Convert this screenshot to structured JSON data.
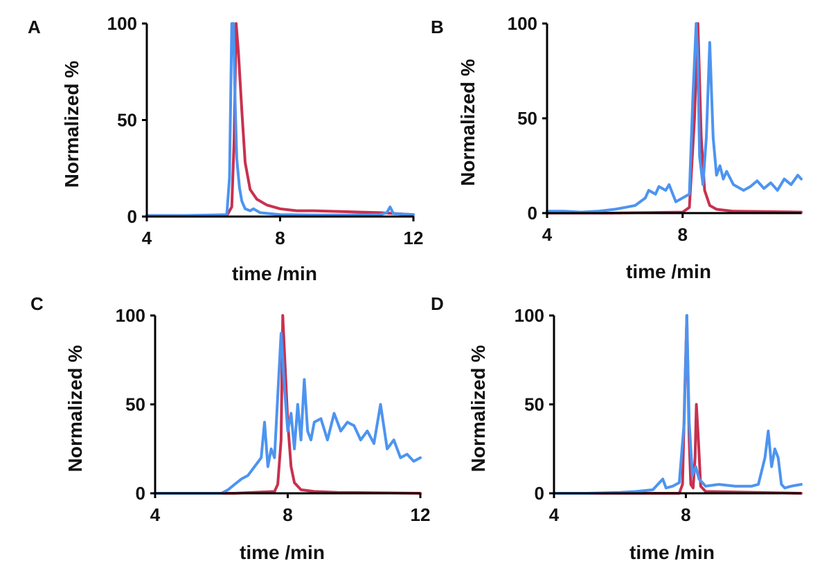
{
  "figure": {
    "colors": {
      "red": "#c8314f",
      "blue": "#4d94f0",
      "black": "#000000"
    }
  },
  "chart_data": [
    {
      "panel": "A",
      "type": "line",
      "xlabel": "time /min",
      "ylabel": "Normalized %",
      "xlim": [
        4,
        12
      ],
      "ylim": [
        0,
        100
      ],
      "xticks": [
        4,
        8,
        12
      ],
      "yticks": [
        0,
        50,
        100
      ],
      "series": [
        {
          "name": "black",
          "color": "#000000",
          "x": [
            4,
            12
          ],
          "y": [
            0,
            0
          ]
        },
        {
          "name": "red",
          "color": "#c8314f",
          "x": [
            4.0,
            6.4,
            6.55,
            6.62,
            6.68,
            6.75,
            6.85,
            6.95,
            7.1,
            7.3,
            7.6,
            8.0,
            8.5,
            9.0,
            10.0,
            11.0,
            12.0
          ],
          "y": [
            0.5,
            0.5,
            5,
            40,
            100,
            85,
            55,
            28,
            14,
            9,
            6,
            4,
            3,
            3,
            2.5,
            2,
            1
          ]
        },
        {
          "name": "blue",
          "color": "#4d94f0",
          "x": [
            4.0,
            5.0,
            6.0,
            6.4,
            6.48,
            6.55,
            6.6,
            6.65,
            6.7,
            6.78,
            6.85,
            6.95,
            7.1,
            7.2,
            7.4,
            8.0,
            9.0,
            10.0,
            11.0,
            11.2,
            11.3,
            11.4,
            12.0
          ],
          "y": [
            0.5,
            0.5,
            0.8,
            1,
            20,
            100,
            100,
            60,
            30,
            15,
            8,
            4,
            3,
            4,
            2,
            1,
            0.8,
            0.8,
            1,
            2,
            5,
            1.5,
            1
          ]
        }
      ]
    },
    {
      "panel": "B",
      "type": "line",
      "xlabel": "time /min",
      "ylabel": "Normalized %",
      "xlim": [
        4,
        11.5
      ],
      "ylim": [
        0,
        100
      ],
      "xticks": [
        4,
        8
      ],
      "yticks": [
        0,
        50,
        100
      ],
      "series": [
        {
          "name": "black",
          "color": "#000000",
          "x": [
            4,
            11.5
          ],
          "y": [
            0,
            0
          ]
        },
        {
          "name": "red",
          "color": "#c8314f",
          "x": [
            4.0,
            5.9,
            8.0,
            8.2,
            8.35,
            8.45,
            8.55,
            8.65,
            8.8,
            9.0,
            9.5,
            11.5
          ],
          "y": [
            0,
            0,
            0.5,
            3,
            50,
            100,
            40,
            12,
            4,
            2,
            1,
            0.5
          ]
        },
        {
          "name": "blue",
          "color": "#4d94f0",
          "x": [
            4.0,
            4.5,
            5.0,
            5.5,
            6.0,
            6.3,
            6.6,
            6.9,
            7.0,
            7.2,
            7.3,
            7.5,
            7.6,
            7.8,
            8.0,
            8.2,
            8.3,
            8.4,
            8.45,
            8.5,
            8.6,
            8.7,
            8.8,
            8.9,
            9.0,
            9.1,
            9.2,
            9.3,
            9.5,
            9.8,
            10.0,
            10.2,
            10.4,
            10.6,
            10.8,
            11.0,
            11.2,
            11.4,
            11.5
          ],
          "y": [
            1,
            1,
            0.5,
            1,
            2,
            3,
            4,
            8,
            12,
            10,
            14,
            12,
            15,
            6,
            8,
            10,
            60,
            100,
            80,
            30,
            15,
            40,
            90,
            40,
            20,
            25,
            18,
            22,
            15,
            12,
            14,
            17,
            13,
            16,
            12,
            18,
            15,
            20,
            18
          ]
        }
      ]
    },
    {
      "panel": "C",
      "type": "line",
      "xlabel": "time /min",
      "ylabel": "Normalized %",
      "xlim": [
        4,
        12
      ],
      "ylim": [
        0,
        100
      ],
      "xticks": [
        4,
        8,
        12
      ],
      "yticks": [
        0,
        50,
        100
      ],
      "series": [
        {
          "name": "black",
          "color": "#000000",
          "x": [
            4,
            12
          ],
          "y": [
            0,
            0
          ]
        },
        {
          "name": "red",
          "color": "#c8314f",
          "x": [
            4.0,
            6.4,
            7.6,
            7.7,
            7.8,
            7.85,
            7.9,
            8.0,
            8.1,
            8.2,
            8.4,
            8.8,
            9.5,
            12.0
          ],
          "y": [
            0,
            0,
            1,
            5,
            30,
            100,
            80,
            40,
            15,
            6,
            2,
            1,
            0.5,
            0
          ]
        },
        {
          "name": "blue",
          "color": "#4d94f0",
          "x": [
            4.0,
            5.0,
            6.0,
            6.2,
            6.4,
            6.6,
            6.8,
            7.0,
            7.2,
            7.3,
            7.4,
            7.5,
            7.6,
            7.7,
            7.8,
            7.9,
            8.0,
            8.1,
            8.2,
            8.3,
            8.4,
            8.5,
            8.6,
            8.7,
            8.8,
            9.0,
            9.2,
            9.4,
            9.6,
            9.8,
            10.0,
            10.2,
            10.4,
            10.6,
            10.8,
            11.0,
            11.2,
            11.4,
            11.6,
            11.8,
            12.0
          ],
          "y": [
            0,
            0,
            0,
            2,
            5,
            8,
            10,
            15,
            20,
            40,
            15,
            25,
            20,
            55,
            90,
            60,
            35,
            45,
            25,
            50,
            30,
            64,
            35,
            30,
            40,
            42,
            30,
            45,
            35,
            40,
            38,
            30,
            35,
            28,
            50,
            25,
            30,
            20,
            22,
            18,
            20
          ]
        }
      ]
    },
    {
      "panel": "D",
      "type": "line",
      "xlabel": "time /min",
      "ylabel": "Normalized %",
      "xlim": [
        4,
        11.5
      ],
      "ylim": [
        0,
        100
      ],
      "xticks": [
        4,
        8
      ],
      "yticks": [
        0,
        50,
        100
      ],
      "series": [
        {
          "name": "black",
          "color": "#000000",
          "x": [
            4,
            11.5
          ],
          "y": [
            0,
            0
          ]
        },
        {
          "name": "red",
          "color": "#c8314f",
          "x": [
            4.0,
            7.8,
            7.9,
            7.97,
            8.03,
            8.1,
            8.15,
            8.22,
            8.28,
            8.32,
            8.38,
            8.45,
            8.6,
            11.5
          ],
          "y": [
            0,
            0,
            5,
            60,
            100,
            30,
            5,
            3,
            20,
            50,
            30,
            4,
            1,
            0
          ]
        },
        {
          "name": "blue",
          "color": "#4d94f0",
          "x": [
            4.0,
            5.0,
            6.0,
            6.5,
            7.0,
            7.3,
            7.4,
            7.6,
            7.8,
            7.95,
            8.03,
            8.1,
            8.2,
            8.3,
            8.4,
            8.6,
            9.0,
            9.5,
            10.0,
            10.2,
            10.4,
            10.5,
            10.6,
            10.7,
            10.8,
            10.9,
            11.0,
            11.2,
            11.5
          ],
          "y": [
            0,
            0,
            0.5,
            1,
            2,
            8,
            3,
            4,
            6,
            40,
            100,
            40,
            10,
            15,
            8,
            4,
            5,
            4,
            4,
            5,
            20,
            35,
            15,
            25,
            20,
            5,
            3,
            4,
            5
          ]
        }
      ]
    }
  ]
}
